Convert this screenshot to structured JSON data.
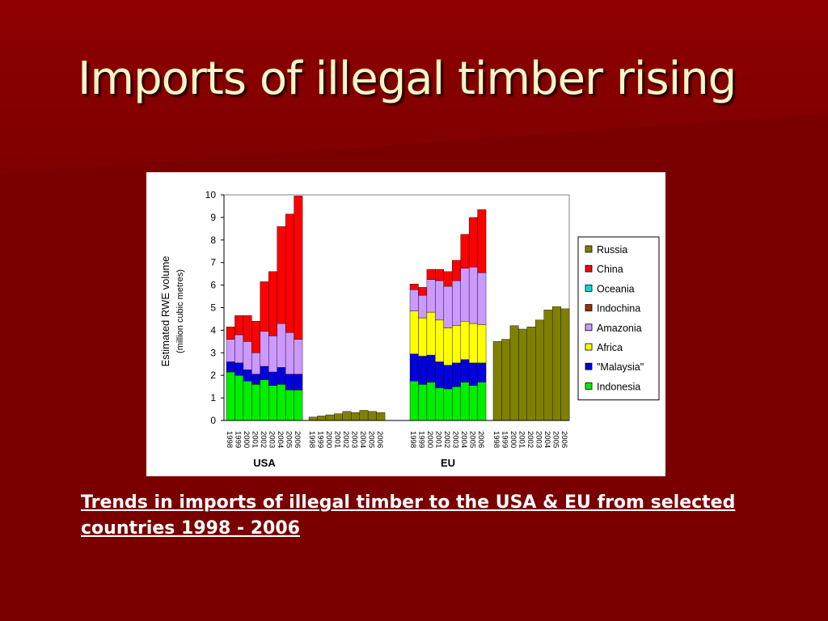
{
  "slide": {
    "title": "Imports of illegal timber rising",
    "caption": "Trends in imports of illegal timber to the USA & EU from selected countries 1998 - 2006"
  },
  "colors": {
    "background": "#7a0000",
    "title": "#fdf6c8"
  },
  "chart_data": {
    "type": "bar",
    "stacked": true,
    "ylabel": "Estimated RWE volume",
    "ylabel_sub": "(million cubic metres)",
    "ylim": [
      0,
      10
    ],
    "y_ticks": [
      "0",
      "1",
      "2",
      "3",
      "4",
      "5",
      "6",
      "7",
      "8",
      "9",
      "10"
    ],
    "legend_position": "right",
    "years": [
      "1998",
      "1999",
      "2000",
      "2001",
      "2002",
      "2003",
      "2004",
      "2005",
      "2006"
    ],
    "series": [
      {
        "name": "Indonesia",
        "color": "#00ee00"
      },
      {
        "name": "\"Malaysia\"",
        "color": "#0000dd"
      },
      {
        "name": "Africa",
        "color": "#ffff00"
      },
      {
        "name": "Amazonia",
        "color": "#cc99ff"
      },
      {
        "name": "Indochina",
        "color": "#993300"
      },
      {
        "name": "Oceania",
        "color": "#00dddd"
      },
      {
        "name": "China",
        "color": "#ff0000"
      },
      {
        "name": "Russia",
        "color": "#808000"
      }
    ],
    "legend_order": [
      "Russia",
      "China",
      "Oceania",
      "Indochina",
      "Amazonia",
      "Africa",
      "\"Malaysia\"",
      "Indonesia"
    ],
    "groups": [
      {
        "label": "USA",
        "segments": [
          {
            "series": "Indonesia",
            "values": [
              2.15,
              2.0,
              1.75,
              1.6,
              1.8,
              1.55,
              1.6,
              1.35,
              1.35
            ]
          },
          {
            "series": "\"Malaysia\"",
            "values": [
              0.45,
              0.55,
              0.5,
              0.45,
              0.6,
              0.6,
              0.75,
              0.7,
              0.7
            ]
          },
          {
            "series": "Amazonia",
            "values": [
              1.0,
              1.25,
              1.25,
              0.95,
              1.55,
              1.6,
              1.95,
              1.85,
              1.55
            ]
          },
          {
            "series": "China",
            "values": [
              0.55,
              0.85,
              1.15,
              1.4,
              2.2,
              2.85,
              4.3,
              5.25,
              6.35
            ]
          }
        ]
      },
      {
        "label": "",
        "segments": [
          {
            "series": "Russia",
            "values": [
              0.15,
              0.2,
              0.25,
              0.3,
              0.4,
              0.35,
              0.45,
              0.4,
              0.35
            ]
          }
        ]
      },
      {
        "label": "EU",
        "segments": [
          {
            "series": "Indonesia",
            "values": [
              1.75,
              1.6,
              1.7,
              1.45,
              1.4,
              1.5,
              1.7,
              1.55,
              1.7
            ]
          },
          {
            "series": "\"Malaysia\"",
            "values": [
              1.2,
              1.25,
              1.2,
              1.15,
              1.05,
              1.05,
              1.0,
              1.0,
              0.85
            ]
          },
          {
            "series": "Africa",
            "values": [
              1.9,
              1.7,
              1.9,
              1.85,
              1.65,
              1.65,
              1.7,
              1.75,
              1.7
            ]
          },
          {
            "series": "Amazonia",
            "values": [
              0.95,
              1.0,
              1.45,
              1.75,
              1.85,
              2.0,
              2.35,
              2.5,
              2.3
            ]
          },
          {
            "series": "China",
            "values": [
              0.25,
              0.35,
              0.45,
              0.5,
              0.65,
              0.9,
              1.5,
              2.2,
              2.8
            ]
          }
        ]
      },
      {
        "label": "",
        "segments": [
          {
            "series": "Russia",
            "values": [
              3.5,
              3.6,
              4.2,
              4.05,
              4.15,
              4.45,
              4.9,
              5.05,
              4.95
            ]
          }
        ]
      }
    ]
  }
}
